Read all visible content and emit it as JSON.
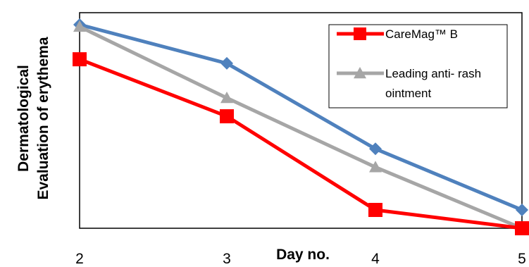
{
  "chart_data": {
    "type": "line",
    "x": [
      2,
      3,
      4,
      5
    ],
    "xlabel": "Day no.",
    "ylabel": "Dermatological Evaluation of erythema",
    "ylabel_lines": [
      "Dermatological",
      "Evaluation of erythema"
    ],
    "ylim": [
      0,
      1
    ],
    "grid": false,
    "legend_position": "top-right",
    "series": [
      {
        "name": "",
        "color": "#4F81BD",
        "marker": "diamond",
        "in_legend": false,
        "values": [
          1.0,
          0.81,
          0.39,
          0.09
        ]
      },
      {
        "name": "Leading anti- rash ointment",
        "legend_lines": [
          "Leading anti- rash",
          "ointment"
        ],
        "color": "#A6A6A6",
        "marker": "triangle",
        "in_legend": true,
        "values": [
          0.99,
          0.64,
          0.3,
          0.0
        ]
      },
      {
        "name": "CareMag™ B",
        "legend_lines": [
          "CareMag™ B"
        ],
        "color": "#FF0000",
        "marker": "square",
        "in_legend": true,
        "values": [
          0.83,
          0.55,
          0.09,
          0.0
        ]
      }
    ],
    "legend_order": [
      2,
      1
    ]
  }
}
